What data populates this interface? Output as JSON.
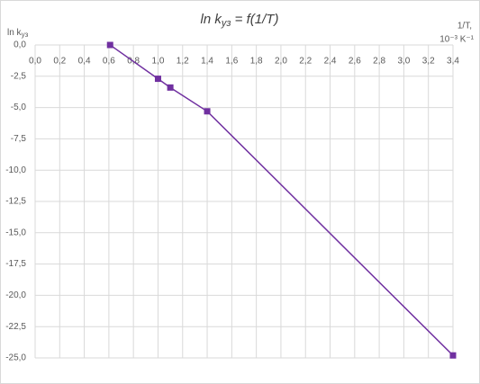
{
  "chart_data": {
    "type": "line",
    "title": [
      "ln k",
      "уз",
      " = f(1/T)"
    ],
    "y_label": [
      "ln k",
      "уз"
    ],
    "x_label": [
      "1/T,",
      "10⁻³ K⁻¹"
    ],
    "series": [
      {
        "name": "ln kуз",
        "color": "#7030a0",
        "x": [
          0.61,
          1.0,
          1.1,
          1.4,
          3.4
        ],
        "values": [
          0,
          -2.7,
          -3.4,
          -5.3,
          -24.8
        ]
      }
    ],
    "xlim": [
      0,
      3.4
    ],
    "xticks": [
      {
        "value": 0,
        "label": "0,0"
      },
      {
        "value": 0.2,
        "label": "0,2"
      },
      {
        "value": 0.4,
        "label": "0,4"
      },
      {
        "value": 0.6,
        "label": "0,6"
      },
      {
        "value": 0.8,
        "label": "0,8"
      },
      {
        "value": 1.0,
        "label": "1,0"
      },
      {
        "value": 1.2,
        "label": "1,2"
      },
      {
        "value": 1.4,
        "label": "1,4"
      },
      {
        "value": 1.6,
        "label": "1,6"
      },
      {
        "value": 1.8,
        "label": "1,8"
      },
      {
        "value": 2.0,
        "label": "2,0"
      },
      {
        "value": 2.2,
        "label": "2,2"
      },
      {
        "value": 2.4,
        "label": "2,4"
      },
      {
        "value": 2.6,
        "label": "2,6"
      },
      {
        "value": 2.8,
        "label": "2,8"
      },
      {
        "value": 3.0,
        "label": "3,0"
      },
      {
        "value": 3.2,
        "label": "3,2"
      },
      {
        "value": 3.4,
        "label": "3,4"
      }
    ],
    "ylim": [
      -25,
      0
    ],
    "yticks": [
      {
        "value": 0,
        "label": "0,0"
      },
      {
        "value": -2.5,
        "label": "-2,5"
      },
      {
        "value": -5,
        "label": "-5,0"
      },
      {
        "value": -7.5,
        "label": "-7,5"
      },
      {
        "value": -10,
        "label": "-10,0"
      },
      {
        "value": -12.5,
        "label": "-12,5"
      },
      {
        "value": -15,
        "label": "-15,0"
      },
      {
        "value": -17.5,
        "label": "-17,5"
      },
      {
        "value": -20,
        "label": "-20,0"
      },
      {
        "value": -22.5,
        "label": "-22,5"
      },
      {
        "value": -25,
        "label": "-25,0"
      }
    ],
    "grid": true
  }
}
